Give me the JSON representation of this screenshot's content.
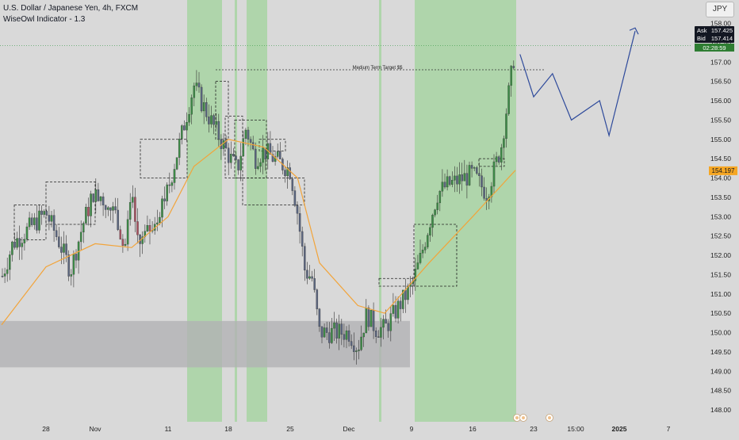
{
  "header": {
    "title": "U.S. Dollar / Japanese Yen, 4h, FXCM",
    "indicator": "WiseOwl Indicator - 1.3"
  },
  "currency": "JPY",
  "quote": {
    "ask_label": "Ask",
    "ask": "157.425",
    "bid_label": "Bid",
    "bid": "157.414",
    "countdown": "02:28:59",
    "ma_value": "154.197"
  },
  "annotation": "Medium Term Target $$",
  "colors": {
    "background": "#d9d9d9",
    "session_green": "#a7d3a2",
    "ma_line": "#f2a43a",
    "candle_up": "#3d8c47",
    "candle_down": "#5b6680",
    "candle_alt": "#a85261",
    "projection": "#2e4a9b",
    "zone": "#b1b1b4",
    "quote_dark": "#131722",
    "countdown_bg": "#2e7d32",
    "ma_label_bg": "#f5a623"
  },
  "chart_data": {
    "type": "line",
    "title": "U.S. Dollar / Japanese Yen, 4h, FXCM",
    "x_tick_labels": [
      "28",
      "Nov",
      "11",
      "18",
      "25",
      "Dec",
      "9",
      "16",
      "23",
      "15:00",
      "2025",
      "7"
    ],
    "y_ticks": [
      158.0,
      157.5,
      157.0,
      156.5,
      156.0,
      155.5,
      155.0,
      154.5,
      154.0,
      153.5,
      153.0,
      152.5,
      152.0,
      151.5,
      151.0,
      150.5,
      150.0,
      149.5,
      149.0,
      148.5,
      148.0
    ],
    "ylim": [
      147.95,
      158.1
    ],
    "grid": false,
    "price_path": [
      {
        "date": "Oct 24",
        "price": 151.4
      },
      {
        "date": "Oct 25",
        "price": 152.3
      },
      {
        "date": "Oct 28",
        "price": 153.1
      },
      {
        "date": "Oct 29",
        "price": 152.4
      },
      {
        "date": "Oct 30",
        "price": 151.6
      },
      {
        "date": "Oct 31",
        "price": 152.8
      },
      {
        "date": "Nov 1",
        "price": 153.7
      },
      {
        "date": "Nov 4",
        "price": 153.0
      },
      {
        "date": "Nov 5",
        "price": 152.1
      },
      {
        "date": "Nov 6",
        "price": 153.4
      },
      {
        "date": "Nov 7",
        "price": 152.3
      },
      {
        "date": "Nov 8",
        "price": 152.5
      },
      {
        "date": "Nov 11",
        "price": 153.7
      },
      {
        "date": "Nov 12",
        "price": 154.6
      },
      {
        "date": "Nov 13",
        "price": 155.5
      },
      {
        "date": "Nov 14",
        "price": 156.4
      },
      {
        "date": "Nov 15",
        "price": 155.9
      },
      {
        "date": "Nov 18",
        "price": 154.6
      },
      {
        "date": "Nov 19",
        "price": 154.2
      },
      {
        "date": "Nov 20",
        "price": 155.3
      },
      {
        "date": "Nov 21",
        "price": 154.5
      },
      {
        "date": "Nov 22",
        "price": 154.7
      },
      {
        "date": "Nov 25",
        "price": 154.2
      },
      {
        "date": "Nov 26",
        "price": 153.1
      },
      {
        "date": "Nov 27",
        "price": 151.6
      },
      {
        "date": "Nov 28",
        "price": 151.4
      },
      {
        "date": "Nov 29",
        "price": 150.0
      },
      {
        "date": "Dec 2",
        "price": 150.0
      },
      {
        "date": "Dec 3",
        "price": 149.6
      },
      {
        "date": "Dec 4",
        "price": 150.5
      },
      {
        "date": "Dec 5",
        "price": 150.1
      },
      {
        "date": "Dec 6",
        "price": 150.1
      },
      {
        "date": "Dec 9",
        "price": 151.2
      },
      {
        "date": "Dec 10",
        "price": 151.9
      },
      {
        "date": "Dec 11",
        "price": 152.8
      },
      {
        "date": "Dec 12",
        "price": 153.6
      },
      {
        "date": "Dec 13",
        "price": 153.8
      },
      {
        "date": "Dec 16",
        "price": 154.1
      },
      {
        "date": "Dec 17",
        "price": 153.6
      },
      {
        "date": "Dec 18",
        "price": 154.8
      },
      {
        "date": "Dec 19",
        "price": 157.4
      }
    ],
    "ma_path": [
      {
        "date": "Oct 24",
        "price": 150.2
      },
      {
        "date": "Oct 28",
        "price": 151.7
      },
      {
        "date": "Nov 1",
        "price": 152.3
      },
      {
        "date": "Nov 6",
        "price": 152.2
      },
      {
        "date": "Nov 11",
        "price": 153.0
      },
      {
        "date": "Nov 14",
        "price": 154.3
      },
      {
        "date": "Nov 18",
        "price": 155.0
      },
      {
        "date": "Nov 22",
        "price": 154.8
      },
      {
        "date": "Nov 26",
        "price": 154.0
      },
      {
        "date": "Nov 29",
        "price": 151.8
      },
      {
        "date": "Dec 3",
        "price": 150.7
      },
      {
        "date": "Dec 6",
        "price": 150.5
      },
      {
        "date": "Dec 11",
        "price": 151.8
      },
      {
        "date": "Dec 16",
        "price": 153.0
      },
      {
        "date": "Dec 19",
        "price": 154.2
      }
    ],
    "projection_path": [
      {
        "date": "Dec 20",
        "price": 157.2
      },
      {
        "date": "Dec 23",
        "price": 156.1
      },
      {
        "date": "Dec 25",
        "price": 156.7
      },
      {
        "date": "Dec 27",
        "price": 155.5
      },
      {
        "date": "Dec 30",
        "price": 156.0
      },
      {
        "date": "Dec 31",
        "price": 155.1
      },
      {
        "date": "Jan 3",
        "price": 157.8
      }
    ],
    "target_level": 156.8,
    "target_label": "Medium Term Target $$",
    "demand_zone": [
      149.1,
      150.3
    ],
    "current_price": 157.425,
    "ma_value": 154.197
  }
}
